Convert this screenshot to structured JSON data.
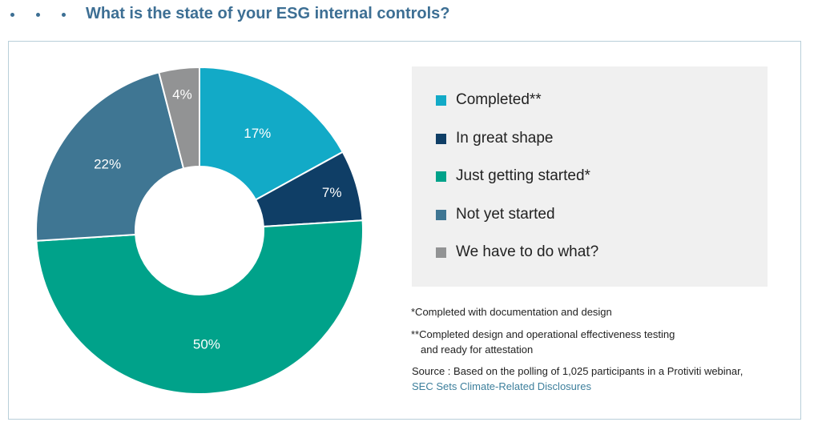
{
  "header": {
    "title": "What is the state of your ESG internal controls?"
  },
  "chart_data": {
    "type": "pie",
    "title": "What is the state of your ESG internal controls?",
    "donut": true,
    "slices": [
      {
        "label": "Completed**",
        "value": 17,
        "display": "17%",
        "color": "#12aac7"
      },
      {
        "label": "In great shape",
        "value": 7,
        "display": "7%",
        "color": "#0f3e66"
      },
      {
        "label": "Just getting started*",
        "value": 50,
        "display": "50%",
        "color": "#00a28a"
      },
      {
        "label": "Not yet started",
        "value": 22,
        "display": "22%",
        "color": "#3f7693"
      },
      {
        "label": "We have to do what?",
        "value": 4,
        "display": "4%",
        "color": "#929394"
      }
    ],
    "legend_position": "right"
  },
  "footnotes": {
    "note1": "*Completed with documentation and design",
    "note2_line1": "**Completed design and operational effectiveness testing",
    "note2_line2": "and ready for attestation"
  },
  "source": {
    "prefix": "Source : Based on the polling of 1,025 participants in a Protiviti webinar,",
    "link_text": "SEC Sets Climate-Related Disclosures"
  }
}
